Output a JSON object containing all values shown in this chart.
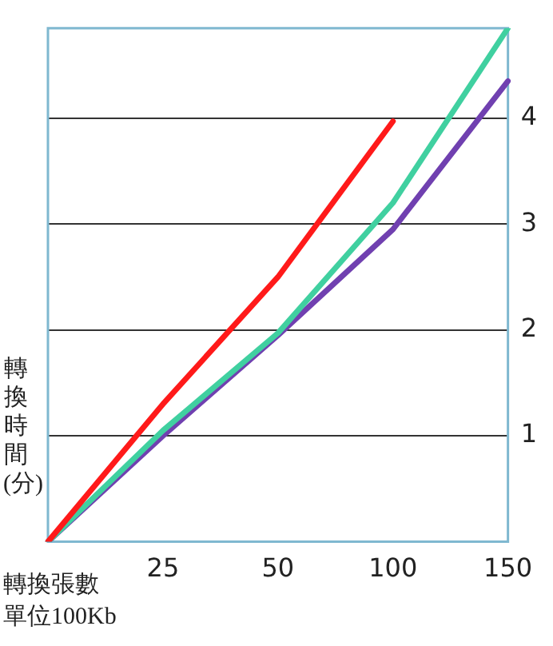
{
  "chart_data": {
    "type": "line",
    "xlabel": "轉換張數單位100Kb",
    "ylabel": "轉換時間(分)",
    "categories": [
      null,
      "25",
      "50",
      "100",
      "150"
    ],
    "series": [
      {
        "color": "#ff1a1a",
        "values": [
          0,
          1.3,
          2.5,
          3.97,
          null
        ]
      },
      {
        "color": "#40d0a0",
        "values": [
          0,
          1.05,
          1.97,
          3.2,
          4.85
        ]
      },
      {
        "color": "#7040b0",
        "values": [
          0,
          1.0,
          1.95,
          2.95,
          4.35
        ]
      }
    ],
    "ylim": [
      0,
      4.85
    ],
    "yticks": [
      1,
      2,
      3,
      4
    ],
    "grid": "y",
    "legend": false,
    "marker": "none",
    "line_style": "solid"
  }
}
